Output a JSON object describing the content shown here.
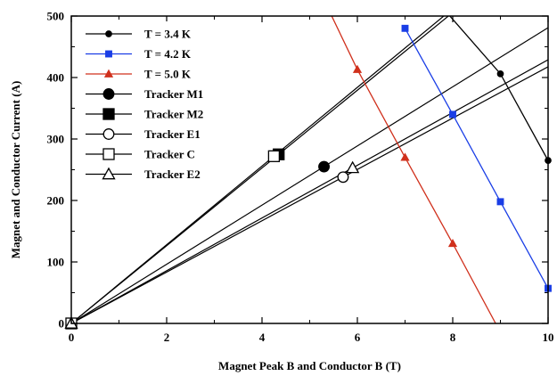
{
  "chart_data": {
    "type": "line",
    "xlabel": "Magnet Peak B and Conductor B (T)",
    "ylabel": "Magnet and Conductor Current (A)",
    "xlim": [
      0,
      10
    ],
    "ylim": [
      0,
      500
    ],
    "x_ticks": [
      "0",
      "2",
      "4",
      "6",
      "8",
      "10"
    ],
    "y_ticks": [
      "0",
      "100",
      "200",
      "300",
      "400",
      "500"
    ],
    "grid": false,
    "legend_position": "top-left",
    "series": [
      {
        "name": "T = 3.4 K",
        "color": "#000000",
        "marker": "circle-small",
        "x": [
          6.7,
          9.0,
          10.0
        ],
        "y": [
          610,
          406,
          265
        ]
      },
      {
        "name": "T = 4.2 K",
        "color": "#1a3ee6",
        "marker": "square-small",
        "x": [
          7.0,
          8.0,
          9.0,
          10.0
        ],
        "y": [
          480,
          340,
          198,
          57
        ]
      },
      {
        "name": "T = 5.0 K",
        "color": "#d0301c",
        "marker": "triangle-small",
        "x": [
          5.4,
          6.0,
          7.0,
          8.0,
          8.9
        ],
        "y": [
          510,
          413,
          270,
          130,
          0
        ]
      }
    ],
    "trackers": [
      {
        "name": "Tracker M1",
        "marker": "circle-filled",
        "x": 5.3,
        "y": 255,
        "end_y": 482
      },
      {
        "name": "Tracker M2",
        "marker": "square-filled",
        "x": 4.35,
        "y": 275,
        "end_y": 632
      },
      {
        "name": "Tracker E1",
        "marker": "circle-open",
        "x": 5.7,
        "y": 238,
        "end_y": 418
      },
      {
        "name": "Tracker C",
        "marker": "square-open",
        "x": 4.25,
        "y": 272,
        "end_y": 640
      },
      {
        "name": "Tracker E2",
        "marker": "triangle-open",
        "x": 5.9,
        "y": 253,
        "end_y": 430
      }
    ]
  }
}
